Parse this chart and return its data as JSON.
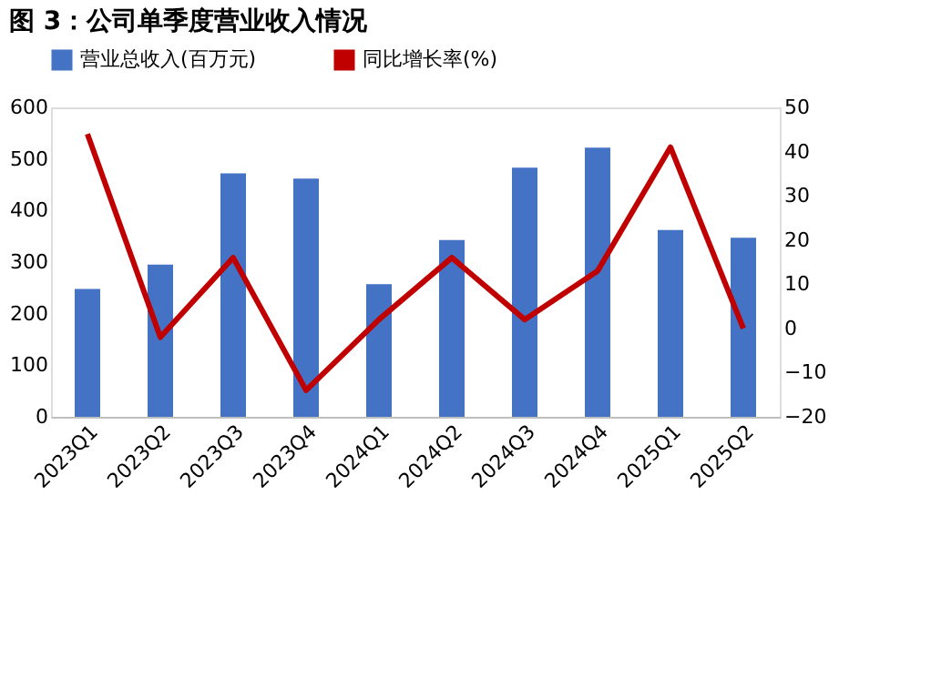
{
  "chart_data": {
    "type": "bar",
    "title": "图 3：公司单季度营业收入情况",
    "categories": [
      "2023Q1",
      "2023Q2",
      "2023Q3",
      "2023Q4",
      "2024Q1",
      "2024Q2",
      "2024Q3",
      "2024Q4",
      "2025Q1",
      "2025Q2"
    ],
    "series": [
      {
        "name": "营业总收入(百万元)",
        "color": "#4472c4",
        "values": [
          248,
          295,
          472,
          462,
          257,
          343,
          483,
          522,
          362,
          347
        ]
      },
      {
        "name": "同比增长率(%)",
        "color": "#c00000",
        "type": "line",
        "axis": "y2",
        "values": [
          44,
          -2,
          16,
          -14,
          2,
          16,
          2,
          13,
          41,
          0
        ]
      }
    ],
    "ylim": [
      0,
      600
    ],
    "yticks": [
      0,
      100,
      200,
      300,
      400,
      500,
      600
    ],
    "y2lim": [
      -20,
      50
    ],
    "y2ticks": [
      -20,
      -10,
      0,
      10,
      20,
      30,
      40,
      50
    ],
    "grid": false,
    "legend": "top",
    "marker": "none"
  }
}
